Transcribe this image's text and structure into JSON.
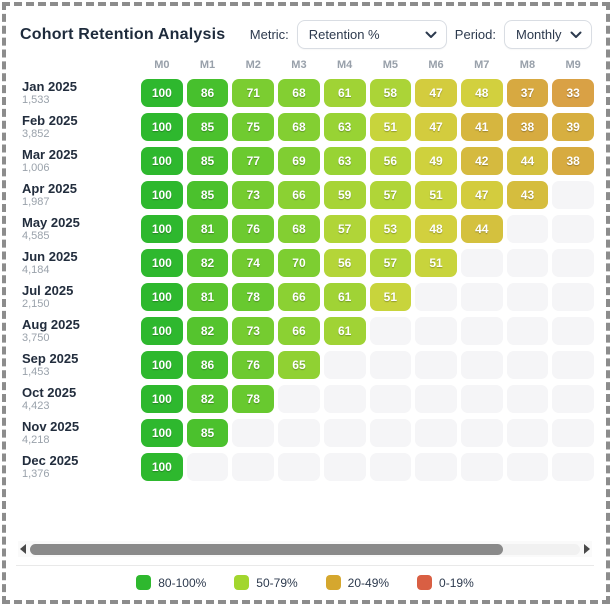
{
  "header": {
    "title": "Cohort Retention Analysis",
    "metric_label": "Metric:",
    "metric_value": "Retention %",
    "period_label": "Period:",
    "period_value": "Monthly"
  },
  "chart_data": {
    "type": "heatmap",
    "title": "Cohort Retention Analysis",
    "metric": "Retention %",
    "period": "Monthly",
    "columns": [
      "M0",
      "M1",
      "M2",
      "M3",
      "M4",
      "M5",
      "M6",
      "M7",
      "M8",
      "M9"
    ],
    "cohorts": [
      {
        "label": "Jan 2025",
        "size": "1,533",
        "values": [
          100,
          86,
          71,
          68,
          61,
          58,
          47,
          48,
          37,
          33
        ]
      },
      {
        "label": "Feb 2025",
        "size": "3,852",
        "values": [
          100,
          85,
          75,
          68,
          63,
          51,
          47,
          41,
          38,
          39
        ]
      },
      {
        "label": "Mar 2025",
        "size": "1,006",
        "values": [
          100,
          85,
          77,
          69,
          63,
          56,
          49,
          42,
          44,
          38
        ]
      },
      {
        "label": "Apr 2025",
        "size": "1,987",
        "values": [
          100,
          85,
          73,
          66,
          59,
          57,
          51,
          47,
          43
        ]
      },
      {
        "label": "May 2025",
        "size": "4,585",
        "values": [
          100,
          81,
          76,
          68,
          57,
          53,
          48,
          44
        ]
      },
      {
        "label": "Jun 2025",
        "size": "4,184",
        "values": [
          100,
          82,
          74,
          70,
          56,
          57,
          51
        ]
      },
      {
        "label": "Jul 2025",
        "size": "2,150",
        "values": [
          100,
          81,
          78,
          66,
          61,
          51
        ]
      },
      {
        "label": "Aug 2025",
        "size": "3,750",
        "values": [
          100,
          82,
          73,
          66,
          61
        ]
      },
      {
        "label": "Sep 2025",
        "size": "1,453",
        "values": [
          100,
          86,
          76,
          65
        ]
      },
      {
        "label": "Oct 2025",
        "size": "4,423",
        "values": [
          100,
          82,
          78
        ]
      },
      {
        "label": "Nov 2025",
        "size": "4,218",
        "values": [
          100,
          85
        ]
      },
      {
        "label": "Dec 2025",
        "size": "1,376",
        "values": [
          100
        ]
      }
    ]
  },
  "color_scale": [
    [
      33,
      "#d9a145"
    ],
    [
      38,
      "#d7ab40"
    ],
    [
      44,
      "#d4c13e"
    ],
    [
      48,
      "#d2d03e"
    ],
    [
      53,
      "#c2d73a"
    ],
    [
      58,
      "#abd437"
    ],
    [
      63,
      "#98d334"
    ],
    [
      68,
      "#83cf32"
    ],
    [
      74,
      "#72cb30"
    ],
    [
      78,
      "#68c92f"
    ],
    [
      82,
      "#55c42e"
    ],
    [
      86,
      "#47c02d"
    ],
    [
      100,
      "#2eb82e"
    ]
  ],
  "legend": [
    {
      "label": "80-100%",
      "color": "#2eb82e"
    },
    {
      "label": "50-79%",
      "color": "#a2d62e"
    },
    {
      "label": "20-49%",
      "color": "#d5a72e"
    },
    {
      "label": "0-19%",
      "color": "#d95f43"
    }
  ]
}
